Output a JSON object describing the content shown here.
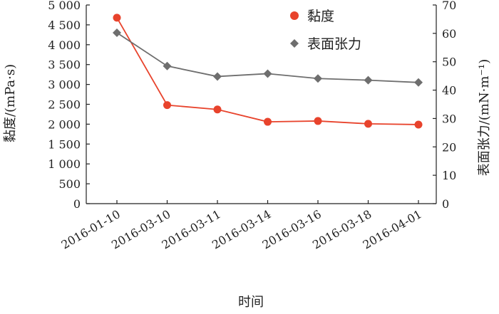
{
  "chart_data": {
    "type": "line",
    "categories": [
      "2016-01-10",
      "2016-03-10",
      "2016-03-11",
      "2016-03-14",
      "2016-03-16",
      "2016-03-18",
      "2016-04-01"
    ],
    "xlabel": "时间",
    "ylabel_left": "黏度/(mPa·s)",
    "ylabel_right": "表面张力/(mN·m⁻¹)",
    "ylim_left": [
      0,
      5000
    ],
    "yticks_left": [
      0,
      500,
      1000,
      1500,
      2000,
      2500,
      3000,
      3500,
      4000,
      4500,
      5000
    ],
    "ytick_labels_left": [
      "0",
      "500",
      "1 000",
      "1 500",
      "2 000",
      "2 500",
      "3 000",
      "3 500",
      "4 000",
      "4 500",
      "5 000"
    ],
    "ylim_right": [
      0,
      70
    ],
    "yticks_right": [
      0,
      10,
      20,
      30,
      40,
      50,
      60,
      70
    ],
    "ytick_labels_right": [
      "0",
      "10",
      "20",
      "30",
      "40",
      "50",
      "60",
      "70"
    ],
    "series": [
      {
        "name": "黏度",
        "axis": "left",
        "color": "#e8432c",
        "marker": "circle",
        "values": [
          4680,
          2480,
          2370,
          2060,
          2080,
          2010,
          1990
        ]
      },
      {
        "name": "表面张力",
        "axis": "right",
        "color": "#6e6e6e",
        "marker": "diamond",
        "values": [
          60.2,
          48.5,
          44.8,
          45.8,
          44.1,
          43.5,
          42.7
        ]
      }
    ],
    "legend_position": "top-right",
    "grid": false
  }
}
